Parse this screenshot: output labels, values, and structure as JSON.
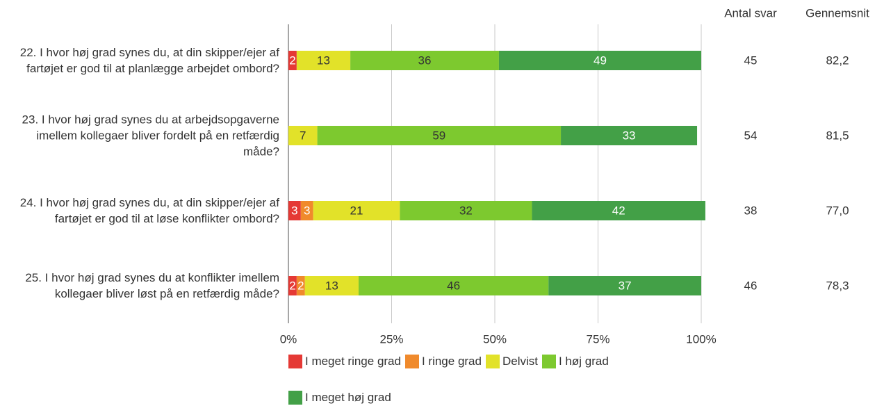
{
  "chart_data": {
    "type": "stacked-barh",
    "categories": [
      "22.  I hvor høj grad synes du, at din skipper/ejer af fartøjet er god til at planlægge arbejdet ombord?",
      "23. I hvor høj grad synes du at arbejdsopgaverne imellem kollegaer bliver fordelt på en retfærdig måde?",
      "24.  I hvor høj grad synes du, at din skipper/ejer af fartøjet er god til at løse konflikter ombord?",
      "25. I hvor høj grad synes du at konflikter imellem kollegaer bliver løst på en retfærdig måde?"
    ],
    "series": [
      {
        "name": "I meget ringe grad",
        "color": "#e53935",
        "label_color": "#ffffff",
        "values": [
          2,
          0,
          3,
          2
        ]
      },
      {
        "name": "I ringe grad",
        "color": "#f08a2c",
        "label_color": "#ffffff",
        "values": [
          0,
          0,
          3,
          2
        ]
      },
      {
        "name": "Delvist",
        "color": "#e2e229",
        "label_color": "#333333",
        "values": [
          13,
          7,
          21,
          13
        ]
      },
      {
        "name": "I høj grad",
        "color": "#7dc92f",
        "label_color": "#333333",
        "values": [
          36,
          59,
          32,
          46
        ]
      },
      {
        "name": "I meget høj grad",
        "color": "#43a047",
        "label_color": "#ffffff",
        "values": [
          49,
          33,
          42,
          37
        ]
      }
    ],
    "xlim": [
      0,
      100
    ],
    "xticks": [
      {
        "value": 0,
        "label": "0%"
      },
      {
        "value": 25,
        "label": "25%"
      },
      {
        "value": 50,
        "label": "50%"
      },
      {
        "value": 75,
        "label": "75%"
      },
      {
        "value": 100,
        "label": "100%"
      }
    ],
    "grid": true,
    "columns": [
      {
        "name": "Antal svar",
        "values": [
          45,
          54,
          38,
          46
        ]
      },
      {
        "name": "Gennemsnit",
        "values": [
          82.2,
          81.5,
          77.0,
          78.3
        ],
        "value_labels": [
          "82,2",
          "81,5",
          "77,0",
          "78,3"
        ]
      }
    ]
  }
}
